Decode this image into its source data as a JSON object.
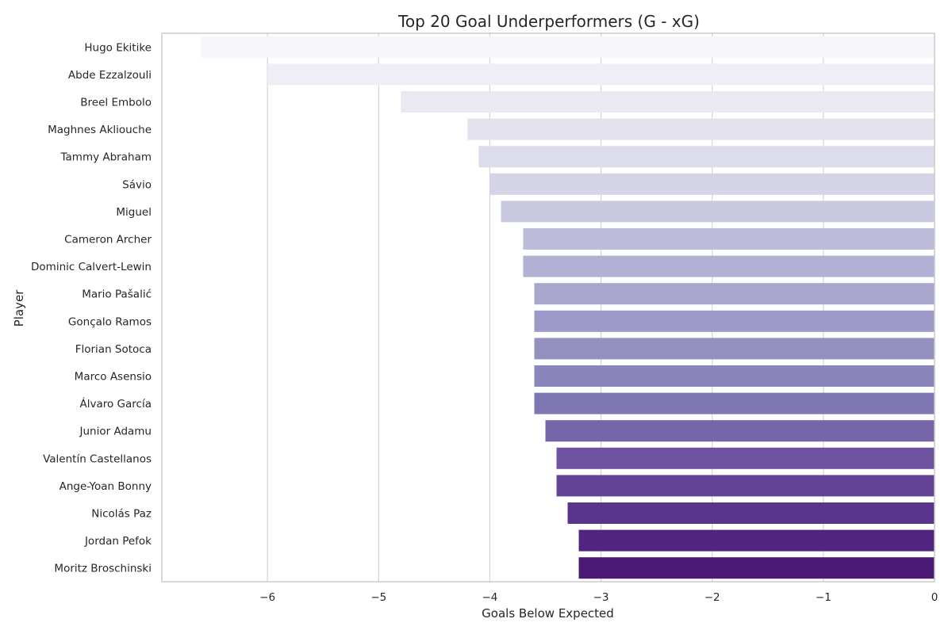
{
  "chart_data": {
    "type": "bar",
    "orientation": "horizontal",
    "title": "Top 20 Goal Underperformers (G - xG)",
    "xlabel": "Goals Below Expected",
    "ylabel": "Player",
    "xlim": [
      -6.95,
      0
    ],
    "xticks": [
      -6,
      -5,
      -4,
      -3,
      -2,
      -1,
      0
    ],
    "xtick_labels": [
      "−6",
      "−5",
      "−4",
      "−3",
      "−2",
      "−1",
      "0"
    ],
    "grid": true,
    "categories": [
      "Hugo Ekitike",
      "Abde Ezzalzouli",
      "Breel Embolo",
      "Maghnes Akliouche",
      "Tammy Abraham",
      "Sávio",
      "Miguel",
      "Cameron Archer",
      "Dominic Calvert-Lewin",
      "Mario Pašalić",
      "Gonçalo Ramos",
      "Florian Sotoca",
      "Marco Asensio",
      "Álvaro García",
      "Junior Adamu",
      "Valentín Castellanos",
      "Ange-Yoan Bonny",
      "Nicolás Paz",
      "Jordan Pefok",
      "Moritz Broschinski"
    ],
    "values": [
      -6.6,
      -6.0,
      -4.8,
      -4.2,
      -4.1,
      -4.0,
      -3.9,
      -3.7,
      -3.7,
      -3.6,
      -3.6,
      -3.6,
      -3.6,
      -3.6,
      -3.5,
      -3.4,
      -3.4,
      -3.3,
      -3.2,
      -3.2
    ],
    "colors": [
      "#f6f5f9",
      "#efedf5",
      "#eae8f2",
      "#e3e1ee",
      "#dddcea",
      "#d4d3e7",
      "#cac9e2",
      "#bdbbda",
      "#b2b0d4",
      "#a8a6cd",
      "#9e9ac8",
      "#9491c0",
      "#8a86bb",
      "#7f77b3",
      "#7665a9",
      "#6d53a0",
      "#644397",
      "#5a348b",
      "#51257f",
      "#4a1a75"
    ],
    "grid_color": "#d3d3d3",
    "frame_color": "#cccccc"
  }
}
